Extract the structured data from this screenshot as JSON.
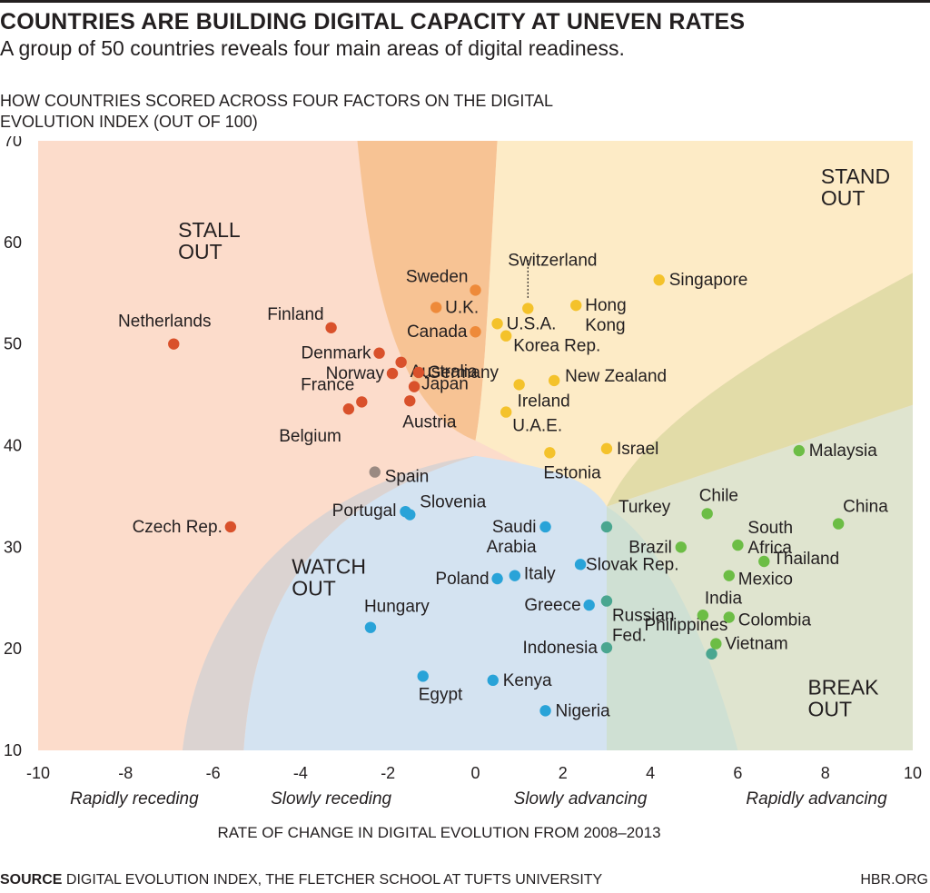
{
  "title": "COUNTRIES ARE BUILDING DIGITAL CAPACITY AT UNEVEN RATES",
  "subtitle": "A group of 50 countries reveals four main areas of digital readiness.",
  "footer": {
    "source_label": "SOURCE",
    "source_text": "DIGITAL EVOLUTION INDEX, THE FLETCHER SCHOOL AT TUFTS UNIVERSITY",
    "credit": "HBR.ORG"
  },
  "chart_data": {
    "type": "scatter",
    "title": "HOW COUNTRIES SCORED ACROSS FOUR FACTORS ON THE DIGITAL EVOLUTION INDEX (OUT OF 100)",
    "xlabel": "RATE OF CHANGE IN DIGITAL EVOLUTION FROM 2008–2013",
    "xlim": [
      -10,
      10
    ],
    "ylim": [
      10,
      70
    ],
    "x_ticks": [
      -10,
      -8,
      -6,
      -4,
      -2,
      0,
      2,
      4,
      6,
      8,
      10
    ],
    "y_ticks": [
      10,
      20,
      30,
      40,
      50,
      60,
      70
    ],
    "x_tick_labels": [
      "-10",
      "-8",
      "-6",
      "-4",
      "-2",
      "0",
      "2",
      "4",
      "6",
      "8",
      "10"
    ],
    "y_tick_labels": [
      "10",
      "20",
      "30",
      "40",
      "50",
      "60",
      "70"
    ],
    "x_descriptors": [
      "Rapidly receding",
      "Slowly receding",
      "Slowly advancing",
      "Rapidly advancing"
    ],
    "zones": [
      {
        "name": "STALL OUT",
        "color": "#fcdccb"
      },
      {
        "name": "STAND OUT",
        "color": "#fdebc6"
      },
      {
        "name": "WATCH OUT",
        "color": "#d4e3f1"
      },
      {
        "name": "BREAK OUT",
        "color": "#dfe4cf"
      }
    ],
    "colors": {
      "stall": "#d9512b",
      "stand": "#f4c22b",
      "watch": "#29a3d8",
      "break": "#6cbd45",
      "transition": "#9a8a82",
      "transition_orange": "#ee8a3a",
      "transition_teal": "#4aa690"
    },
    "points": [
      {
        "name": "Netherlands",
        "x": -6.9,
        "y": 50.0,
        "group": "stall"
      },
      {
        "name": "Finland",
        "x": -3.3,
        "y": 51.6,
        "group": "stall"
      },
      {
        "name": "Denmark",
        "x": -2.2,
        "y": 49.1,
        "group": "stall"
      },
      {
        "name": "Norway",
        "x": -1.9,
        "y": 47.1,
        "group": "stall"
      },
      {
        "name": "Australia",
        "x": -1.7,
        "y": 48.2,
        "group": "stall"
      },
      {
        "name": "Germany",
        "x": -1.3,
        "y": 47.2,
        "group": "stall"
      },
      {
        "name": "France",
        "x": -2.6,
        "y": 44.3,
        "group": "stall"
      },
      {
        "name": "Belgium",
        "x": -2.9,
        "y": 43.6,
        "group": "stall"
      },
      {
        "name": "Japan",
        "x": -1.4,
        "y": 45.8,
        "group": "stall"
      },
      {
        "name": "Austria",
        "x": -1.5,
        "y": 44.4,
        "group": "stall"
      },
      {
        "name": "Czech Rep.",
        "x": -5.6,
        "y": 32.0,
        "group": "stall"
      },
      {
        "name": "Sweden",
        "x": 0.0,
        "y": 55.3,
        "group": "transition_orange"
      },
      {
        "name": "U.K.",
        "x": -0.9,
        "y": 53.6,
        "group": "transition_orange"
      },
      {
        "name": "Canada",
        "x": 0.0,
        "y": 51.2,
        "group": "transition_orange"
      },
      {
        "name": "Switzerland",
        "x": 1.2,
        "y": 53.5,
        "group": "stand"
      },
      {
        "name": "U.S.A.",
        "x": 0.5,
        "y": 52.0,
        "group": "stand"
      },
      {
        "name": "Korea Rep.",
        "x": 0.7,
        "y": 50.8,
        "group": "stand"
      },
      {
        "name": "Hong Kong",
        "x": 2.3,
        "y": 53.8,
        "group": "stand"
      },
      {
        "name": "Singapore",
        "x": 4.2,
        "y": 56.3,
        "group": "stand"
      },
      {
        "name": "New Zealand",
        "x": 1.8,
        "y": 46.4,
        "group": "stand"
      },
      {
        "name": "Ireland",
        "x": 1.0,
        "y": 46.0,
        "group": "stand"
      },
      {
        "name": "U.A.E.",
        "x": 0.7,
        "y": 43.3,
        "group": "stand"
      },
      {
        "name": "Israel",
        "x": 3.0,
        "y": 39.7,
        "group": "stand"
      },
      {
        "name": "Estonia",
        "x": 1.7,
        "y": 39.3,
        "group": "stand"
      },
      {
        "name": "Spain",
        "x": -2.3,
        "y": 37.4,
        "group": "transition"
      },
      {
        "name": "Portugal",
        "x": -1.6,
        "y": 33.5,
        "group": "watch"
      },
      {
        "name": "Slovenia",
        "x": -1.5,
        "y": 33.2,
        "group": "watch"
      },
      {
        "name": "Saudi Arabia",
        "x": 1.6,
        "y": 32.0,
        "group": "watch"
      },
      {
        "name": "Poland",
        "x": 0.5,
        "y": 26.9,
        "group": "watch"
      },
      {
        "name": "Italy",
        "x": 0.9,
        "y": 27.2,
        "group": "watch"
      },
      {
        "name": "Slovak Rep.",
        "x": 2.4,
        "y": 28.3,
        "group": "watch"
      },
      {
        "name": "Greece",
        "x": 2.6,
        "y": 24.3,
        "group": "watch"
      },
      {
        "name": "Hungary",
        "x": -2.4,
        "y": 22.1,
        "group": "watch"
      },
      {
        "name": "Egypt",
        "x": -1.2,
        "y": 17.3,
        "group": "watch"
      },
      {
        "name": "Kenya",
        "x": 0.4,
        "y": 16.9,
        "group": "watch"
      },
      {
        "name": "Nigeria",
        "x": 1.6,
        "y": 13.9,
        "group": "watch"
      },
      {
        "name": "Turkey",
        "x": 3.0,
        "y": 32.0,
        "group": "transition_teal"
      },
      {
        "name": "Russian Fed.",
        "x": 3.0,
        "y": 24.7,
        "group": "transition_teal"
      },
      {
        "name": "Indonesia",
        "x": 3.0,
        "y": 20.1,
        "group": "transition_teal"
      },
      {
        "name": "Philippines",
        "x": 5.4,
        "y": 19.5,
        "group": "transition_teal"
      },
      {
        "name": "Chile",
        "x": 5.3,
        "y": 33.3,
        "group": "break"
      },
      {
        "name": "Brazil",
        "x": 4.7,
        "y": 30.0,
        "group": "break"
      },
      {
        "name": "South Africa",
        "x": 6.0,
        "y": 30.2,
        "group": "break"
      },
      {
        "name": "China",
        "x": 8.3,
        "y": 32.3,
        "group": "break"
      },
      {
        "name": "Malaysia",
        "x": 7.4,
        "y": 39.5,
        "group": "break"
      },
      {
        "name": "Thailand",
        "x": 6.6,
        "y": 28.6,
        "group": "break"
      },
      {
        "name": "Mexico",
        "x": 5.8,
        "y": 27.2,
        "group": "break"
      },
      {
        "name": "India",
        "x": 5.2,
        "y": 23.3,
        "group": "break"
      },
      {
        "name": "Colombia",
        "x": 5.8,
        "y": 23.1,
        "group": "break"
      },
      {
        "name": "Vietnam",
        "x": 5.5,
        "y": 20.5,
        "group": "break"
      }
    ]
  }
}
